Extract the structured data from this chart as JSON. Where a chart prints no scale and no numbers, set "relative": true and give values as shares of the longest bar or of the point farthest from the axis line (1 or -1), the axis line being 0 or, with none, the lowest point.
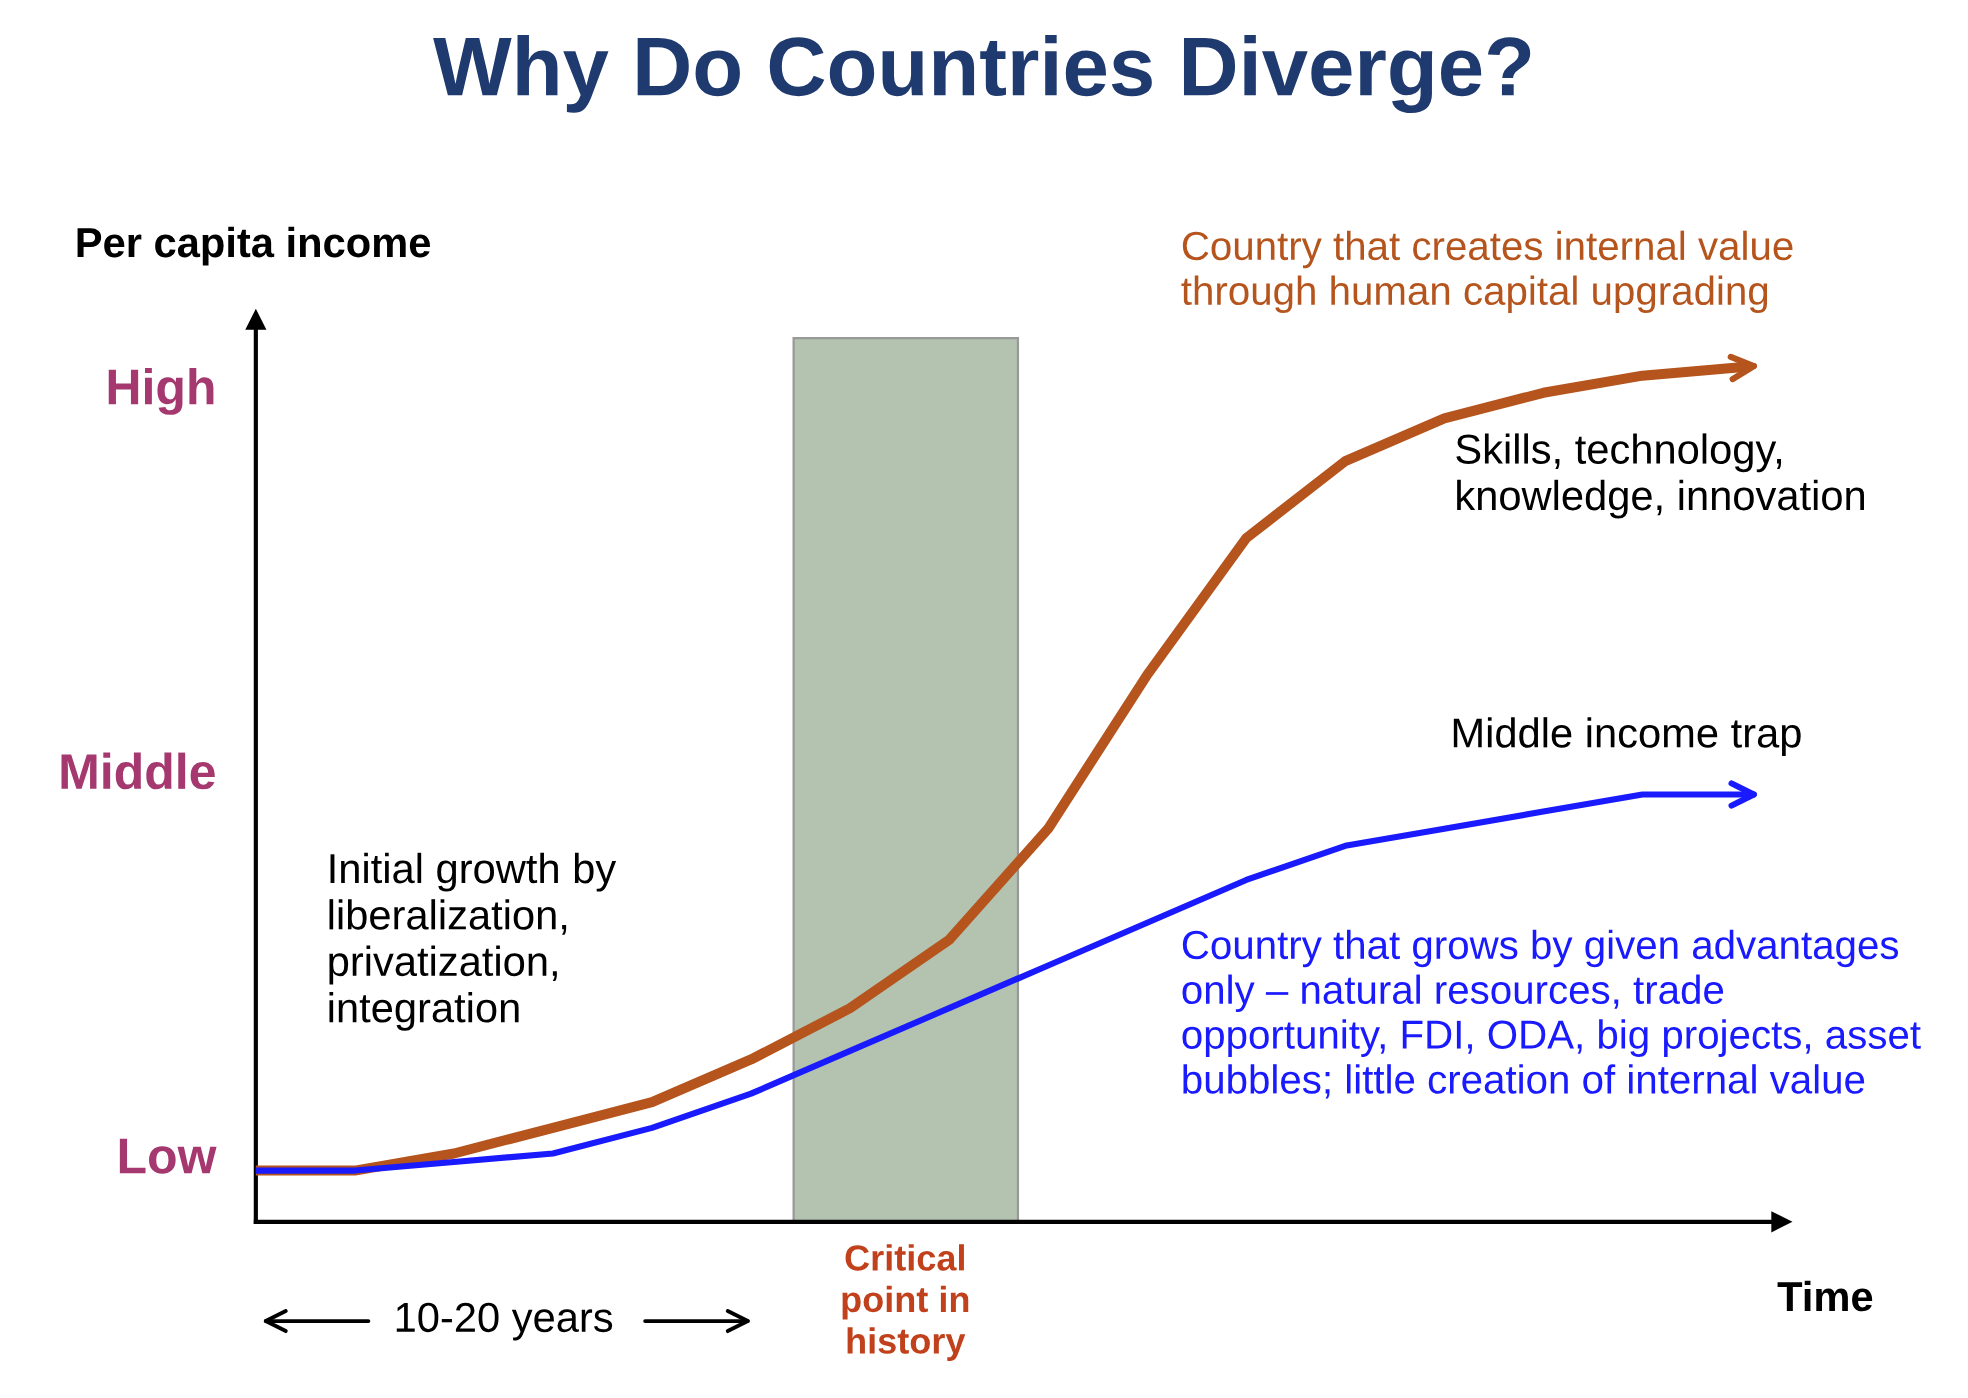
{
  "chart_data": {
    "type": "line",
    "title": "Why Do Countries Diverge?",
    "xlabel": "Time",
    "ylabel": "Per capita income",
    "categories": [
      null,
      null,
      null,
      null,
      null,
      null,
      null,
      null,
      null,
      null,
      null,
      null,
      null,
      null,
      null,
      null
    ],
    "series": [
      {
        "name": "Country that creates internal value through human capital upgrading",
        "color": "#b5541c",
        "values": [
          0.06,
          0.06,
          0.08,
          0.11,
          0.14,
          0.19,
          0.25,
          0.33,
          0.46,
          0.64,
          0.8,
          0.89,
          0.94,
          0.97,
          0.99,
          1.0
        ]
      },
      {
        "name": "Country that grows by given advantages only – natural resources, trade opportunity, FDI, ODA, big projects, asset bubbles; little creation of internal value",
        "color": "#1a1aff",
        "values": [
          0.06,
          0.06,
          0.07,
          0.08,
          0.11,
          0.15,
          0.2,
          0.25,
          0.3,
          0.35,
          0.4,
          0.44,
          0.46,
          0.48,
          0.5,
          0.5
        ]
      }
    ],
    "relative": true,
    "annotations": [
      "Low",
      "Middle",
      "High",
      "Skills, technology, knowledge, innovation",
      "Middle income trap",
      "Initial growth by liberalization, privatization, integration",
      "10-20 years",
      "Critical point in history"
    ],
    "legend": false,
    "marker": "none",
    "line_style": "solid"
  }
}
